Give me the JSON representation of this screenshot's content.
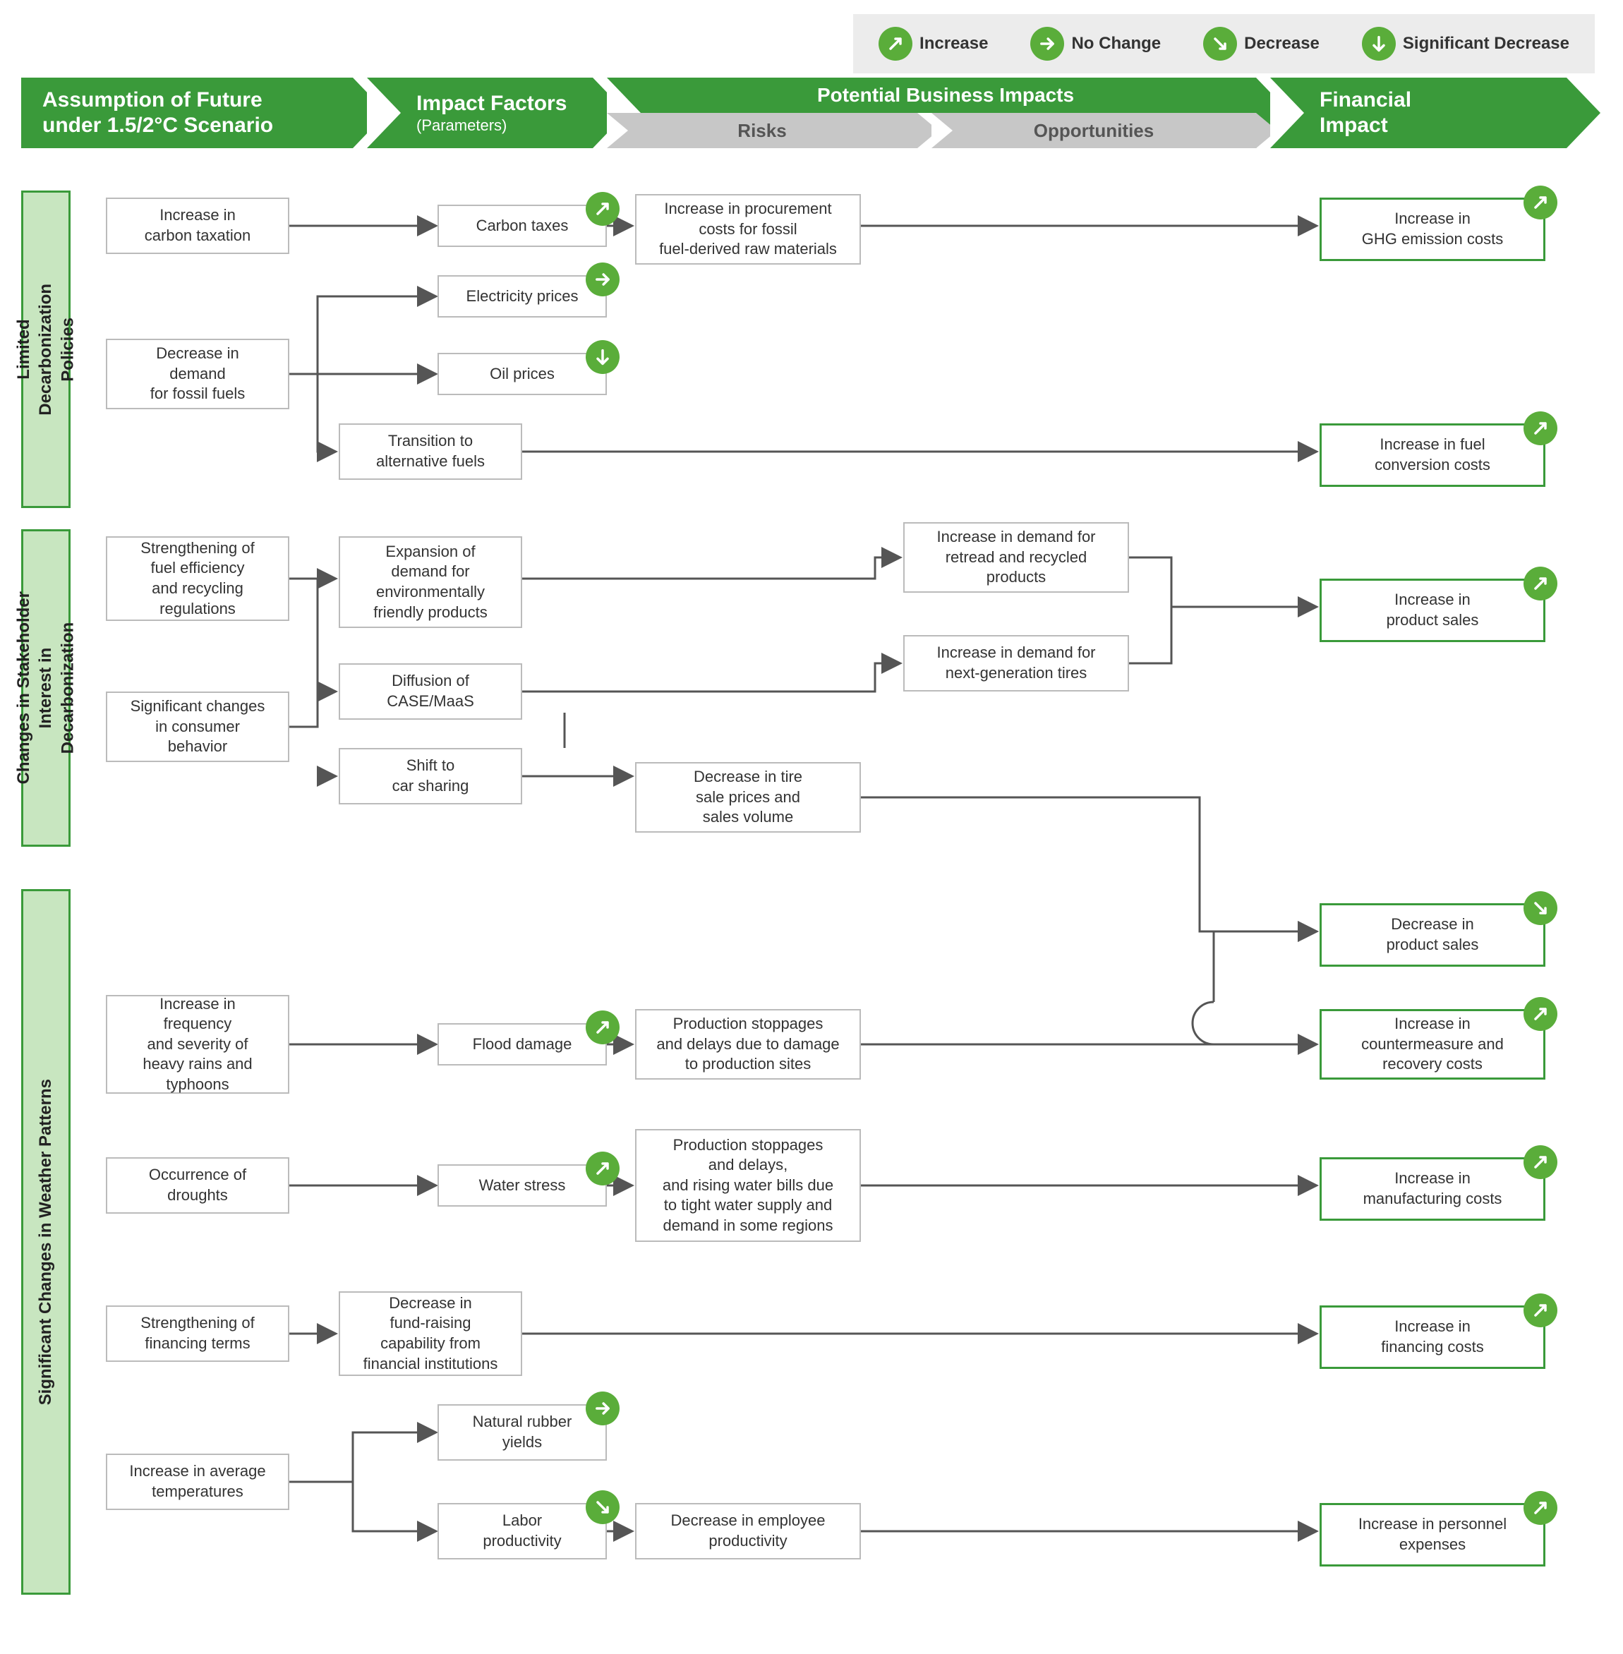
{
  "legend": {
    "increase": "Increase",
    "nochange": "No Change",
    "decrease": "Decrease",
    "sigdecrease": "Significant Decrease"
  },
  "headers": {
    "assumption": "Assumption of Future\nunder 1.5/2°C Scenario",
    "impact_factors": "Impact Factors",
    "impact_factors_sub": "(Parameters)",
    "potential": "Potential Business Impacts",
    "risks": "Risks",
    "opportunities": "Opportunities",
    "financial": "Financial\nImpact"
  },
  "sections": {
    "s1": "Limited\nDecarbonization\nPolicies",
    "s2": "Changes in Stakeholder\nInterest in\nDecarbonization",
    "s3": "Significant Changes in Weather Patterns"
  },
  "nodes": {
    "a1": "Increase in\ncarbon taxation",
    "a2": "Decrease in\ndemand\nfor fossil fuels",
    "a3": "Strengthening of\nfuel efficiency\nand recycling\nregulations",
    "a4": "Significant changes\nin consumer\nbehavior",
    "a5": "Increase in\nfrequency\nand severity of\nheavy rains and\ntyphoons",
    "a6": "Occurrence of\ndroughts",
    "a7": "Strengthening of\nfinancing terms",
    "a8": "Increase in average\ntemperatures",
    "b1": "Carbon taxes",
    "b2": "Electricity prices",
    "b3": "Oil prices",
    "b4": "Transition to\nalternative fuels",
    "b5": "Expansion of\ndemand for\nenvironmentally\nfriendly products",
    "b6": "Diffusion of\nCASE/MaaS",
    "b7": "Shift to\ncar sharing",
    "b8": "Flood damage",
    "b9": "Water stress",
    "b10": "Decrease in\nfund-raising\ncapability from\nfinancial institutions",
    "b11": "Natural rubber\nyields",
    "b12": "Labor\nproductivity",
    "r1": "Increase in procurement\ncosts for fossil\nfuel-derived raw materials",
    "r2": "Decrease in tire\nsale prices and\nsales volume",
    "r3": "Production stoppages\nand delays due to damage\nto production sites",
    "r4": "Production stoppages\nand delays,\nand rising water bills due\nto tight water supply and\ndemand in some regions",
    "r5": "Decrease in employee\nproductivity",
    "o1": "Increase in demand for\nretread and recycled\nproducts",
    "o2": "Increase in demand for\nnext-generation tires",
    "f1": "Increase in\nGHG emission costs",
    "f2": "Increase in fuel\nconversion costs",
    "f3": "Increase in\nproduct sales",
    "f4": "Decrease in\nproduct sales",
    "f5": "Increase in\ncountermeasure and\nrecovery costs",
    "f6": "Increase in\nmanufacturing costs",
    "f7": "Increase in\nfinancing costs",
    "f8": "Increase in personnel\nexpenses"
  },
  "trends": {
    "b1": "increase",
    "b2": "nochange",
    "b3": "sigdecrease",
    "b8": "increase",
    "b9": "increase",
    "b11": "nochange",
    "b12": "decrease",
    "f1": "increase",
    "f2": "increase",
    "f3": "increase",
    "f4": "decrease",
    "f5": "increase",
    "f6": "increase",
    "f7": "increase",
    "f8": "increase"
  },
  "colors": {
    "green": "#3a9a3a",
    "badge": "#5aad3a",
    "lightgreen": "#c8e6c0",
    "grey": "#bbbbbb",
    "hdr_grey": "#c7c7c7",
    "arrow": "#555555"
  },
  "layout": {
    "cols": {
      "a": 150,
      "a_w": 260,
      "b": 480,
      "b_w": 260,
      "b2": 620,
      "b2_w": 240,
      "r": 900,
      "r_w": 320,
      "o": 1280,
      "o_w": 320,
      "f": 1870,
      "f_w": 320
    }
  }
}
